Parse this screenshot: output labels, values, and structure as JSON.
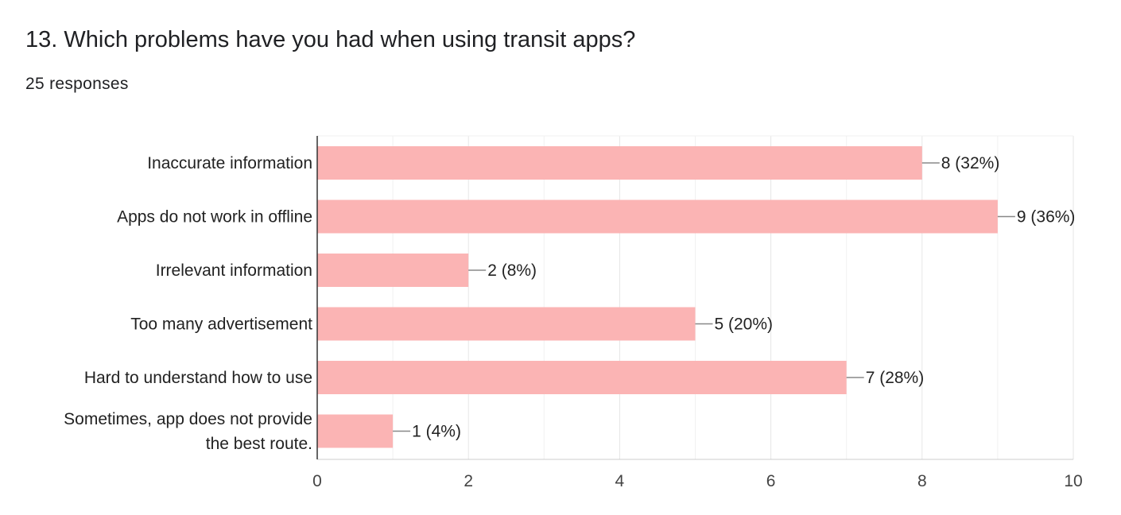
{
  "question": {
    "title": "13. Which problems have you had when using transit apps?",
    "responses": "25 responses"
  },
  "chart_data": {
    "type": "bar",
    "orientation": "horizontal",
    "categories": [
      [
        "Inaccurate information"
      ],
      [
        "Apps do not work in offline"
      ],
      [
        "Irrelevant information"
      ],
      [
        "Too many advertisement"
      ],
      [
        "Hard to understand how to use"
      ],
      [
        "Sometimes, app does not provide",
        "the best route."
      ]
    ],
    "values": [
      8,
      9,
      2,
      5,
      7,
      1
    ],
    "data_labels": [
      "8 (32%)",
      "9 (36%)",
      "2 (8%)",
      "5 (20%)",
      "7 (28%)",
      "1 (4%)"
    ],
    "xlim": [
      0,
      10
    ],
    "xticks": [
      0,
      2,
      4,
      6,
      8,
      10
    ],
    "grid": true,
    "bar_color": "#fbb4b4"
  }
}
